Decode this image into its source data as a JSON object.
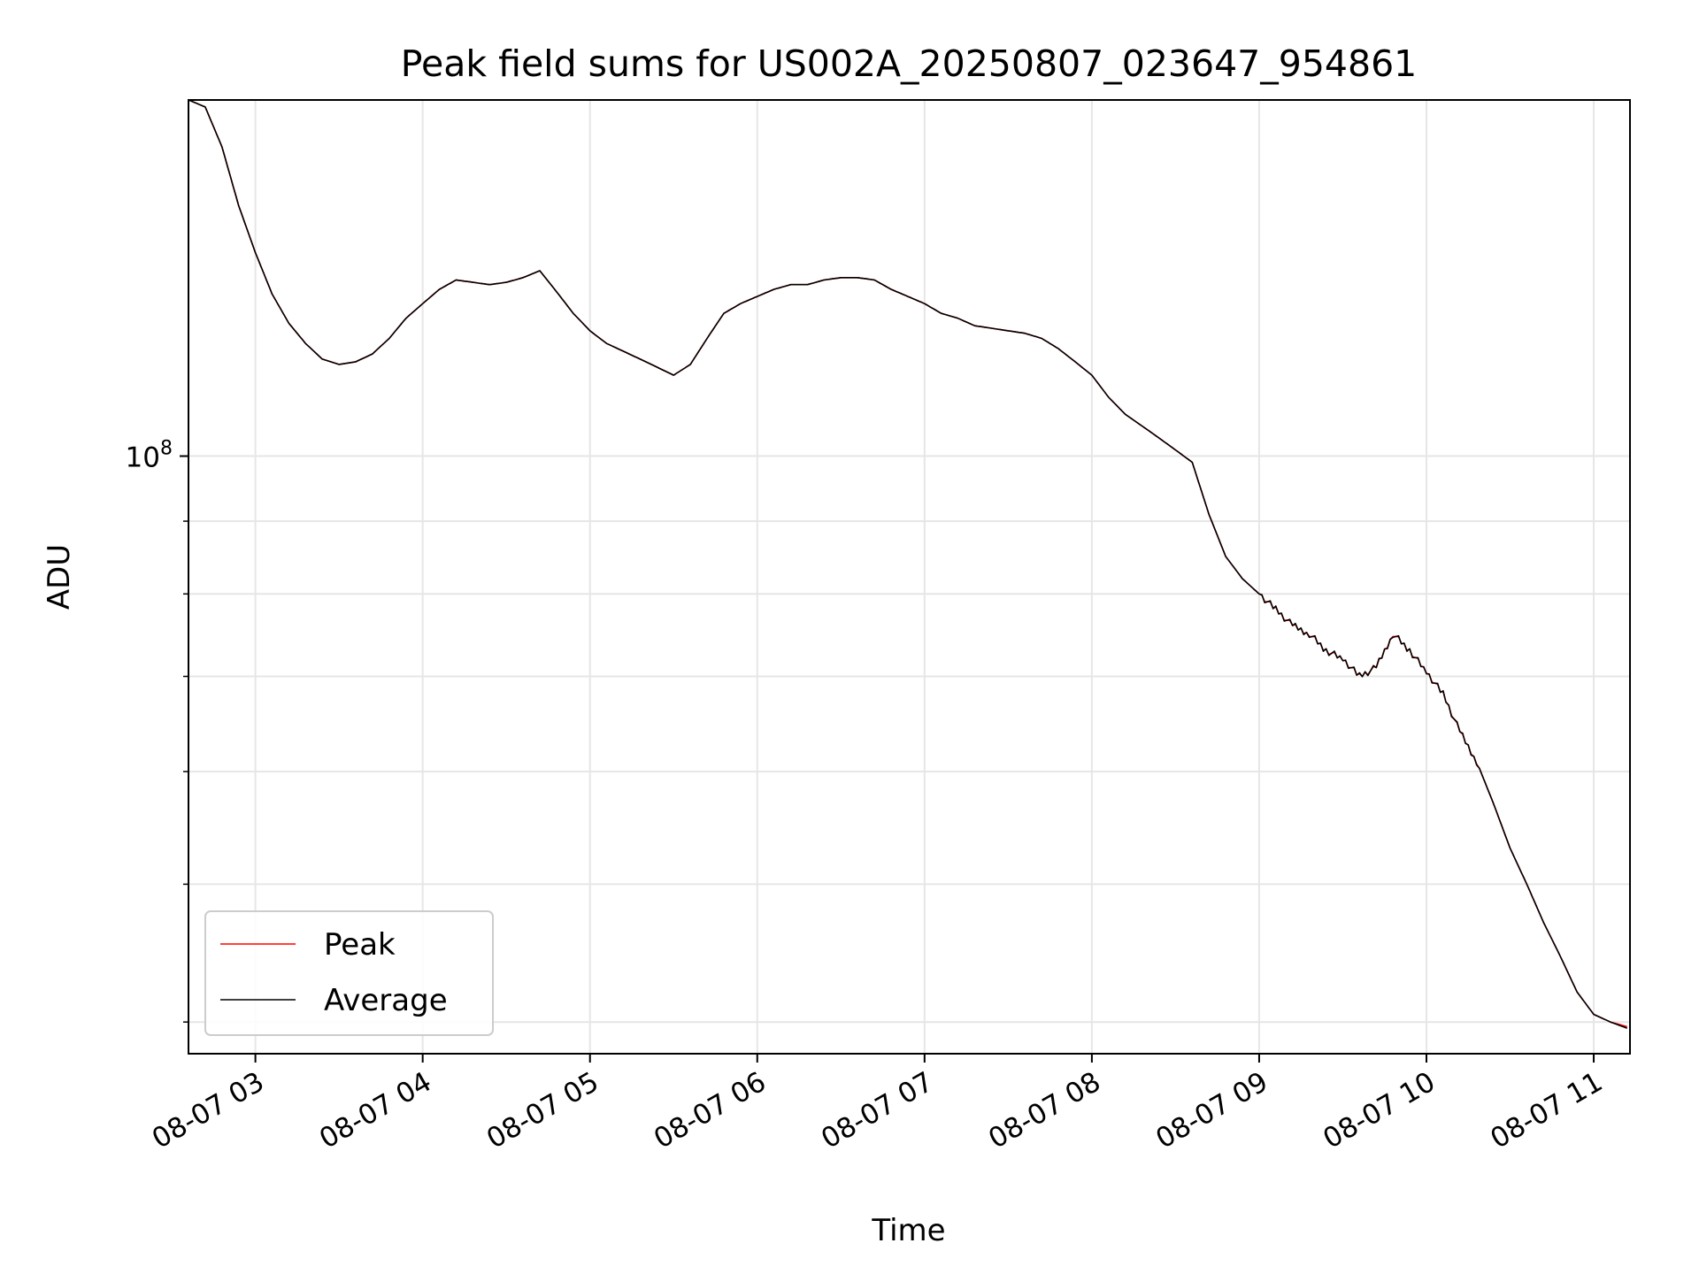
{
  "chart_data": {
    "type": "line",
    "title": "Peak field sums for US002A_20250807_023647_954861",
    "xlabel": "Time",
    "ylabel": "ADU",
    "yscale": "log",
    "grid": true,
    "legend_position": "lower-left",
    "x_ticks": [
      "08-07 03",
      "08-07 04",
      "08-07 05",
      "08-07 06",
      "08-07 07",
      "08-07 08",
      "08-07 09",
      "08-07 10",
      "08-07 11"
    ],
    "y_ticks": [
      "10^8"
    ],
    "xlim": [
      "2025-08-07 02:36",
      "2025-08-07 11:13"
    ],
    "ylim": [
      38000000,
      178000000
    ],
    "x": [
      "02:36",
      "02:42",
      "02:48",
      "02:54",
      "03:00",
      "03:06",
      "03:12",
      "03:18",
      "03:24",
      "03:30",
      "03:36",
      "03:42",
      "03:48",
      "03:54",
      "04:00",
      "04:06",
      "04:12",
      "04:18",
      "04:24",
      "04:30",
      "04:36",
      "04:42",
      "04:48",
      "04:54",
      "05:00",
      "05:06",
      "05:12",
      "05:18",
      "05:24",
      "05:30",
      "05:36",
      "05:42",
      "05:48",
      "05:54",
      "06:00",
      "06:06",
      "06:12",
      "06:18",
      "06:24",
      "06:30",
      "06:36",
      "06:42",
      "06:48",
      "06:54",
      "07:00",
      "07:06",
      "07:12",
      "07:18",
      "07:24",
      "07:30",
      "07:36",
      "07:42",
      "07:48",
      "07:54",
      "08:00",
      "08:06",
      "08:12",
      "08:18",
      "08:24",
      "08:30",
      "08:36",
      "08:42",
      "08:48",
      "08:54",
      "09:00",
      "09:06",
      "09:12",
      "09:18",
      "09:24",
      "09:30",
      "09:36",
      "09:42",
      "09:48",
      "09:54",
      "10:00",
      "10:06",
      "10:12",
      "10:18",
      "10:24",
      "10:30",
      "10:36",
      "10:42",
      "10:48",
      "10:54",
      "11:00",
      "11:06",
      "11:12"
    ],
    "series": [
      {
        "name": "Peak",
        "color": "#ff0000",
        "values": [
          178000000,
          176000000,
          165000000,
          150000000,
          139000000,
          130000000,
          124000000,
          120000000,
          117000000,
          116000000,
          116500000,
          118000000,
          121000000,
          125000000,
          128000000,
          131000000,
          133000000,
          132500000,
          132000000,
          132500000,
          133500000,
          135000000,
          130500000,
          126000000,
          122500000,
          120000000,
          118500000,
          117000000,
          115500000,
          114000000,
          116000000,
          121000000,
          126000000,
          128000000,
          129500000,
          131000000,
          132000000,
          132000000,
          133000000,
          133500000,
          133500000,
          133000000,
          131000000,
          129500000,
          128000000,
          126000000,
          125000000,
          123500000,
          123000000,
          122500000,
          122000000,
          121000000,
          119000000,
          116500000,
          114000000,
          110000000,
          107000000,
          105000000,
          103000000,
          101000000,
          99000000,
          91000000,
          85000000,
          82000000,
          80000000,
          78000000,
          76000000,
          75000000,
          73000000,
          72000000,
          70000000,
          71000000,
          75000000,
          73000000,
          70500000,
          68000000,
          64000000,
          61000000,
          57000000,
          53000000,
          50000000,
          47000000,
          44500000,
          42000000,
          40500000,
          40000000,
          39700000
        ]
      },
      {
        "name": "Average",
        "color": "#000000",
        "values": [
          178000000,
          176000000,
          165000000,
          150000000,
          139000000,
          130000000,
          124000000,
          120000000,
          117000000,
          116000000,
          116500000,
          118000000,
          121000000,
          125000000,
          128000000,
          131000000,
          133000000,
          132500000,
          132000000,
          132500000,
          133500000,
          135000000,
          130500000,
          126000000,
          122500000,
          120000000,
          118500000,
          117000000,
          115500000,
          114000000,
          116000000,
          121000000,
          126000000,
          128000000,
          129500000,
          131000000,
          132000000,
          132000000,
          133000000,
          133500000,
          133500000,
          133000000,
          131000000,
          129500000,
          128000000,
          126000000,
          125000000,
          123500000,
          123000000,
          122500000,
          122000000,
          121000000,
          119000000,
          116500000,
          114000000,
          110000000,
          107000000,
          105000000,
          103000000,
          101000000,
          99000000,
          91000000,
          85000000,
          82000000,
          80000000,
          78000000,
          76000000,
          75000000,
          73000000,
          72000000,
          70000000,
          71000000,
          75000000,
          73000000,
          70500000,
          68000000,
          64000000,
          61000000,
          57000000,
          53000000,
          50000000,
          47000000,
          44500000,
          42000000,
          40500000,
          40000000,
          39600000
        ]
      }
    ]
  }
}
